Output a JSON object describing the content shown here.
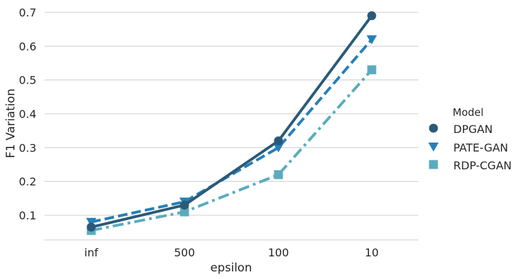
{
  "chart_data": {
    "type": "line",
    "xlabel": "epsilon",
    "ylabel": "F1 Variation",
    "categories": [
      "inf",
      "500",
      "100",
      "10"
    ],
    "ylim": [
      0.025,
      0.72
    ],
    "yticks": [
      0.1,
      0.2,
      0.3,
      0.4,
      0.5,
      0.6,
      0.7
    ],
    "ytick_labels": [
      "0.1",
      "0.2",
      "0.3",
      "0.4",
      "0.5",
      "0.6",
      "0.7"
    ],
    "grid": "horizontal",
    "legend": {
      "title": "Model",
      "placement": "right"
    },
    "series": [
      {
        "name": "DPGAN",
        "values": [
          0.065,
          0.13,
          0.32,
          0.69
        ],
        "color": "#2a5a78",
        "marker": "circle",
        "dash": "solid"
      },
      {
        "name": "PATE-GAN",
        "values": [
          0.08,
          0.14,
          0.3,
          0.62
        ],
        "color": "#2580b8",
        "marker": "triangle-down",
        "dash": "dashed"
      },
      {
        "name": "RDP-CGAN",
        "values": [
          0.055,
          0.11,
          0.22,
          0.53
        ],
        "color": "#5aabbd",
        "marker": "square",
        "dash": "dashdot"
      }
    ]
  }
}
